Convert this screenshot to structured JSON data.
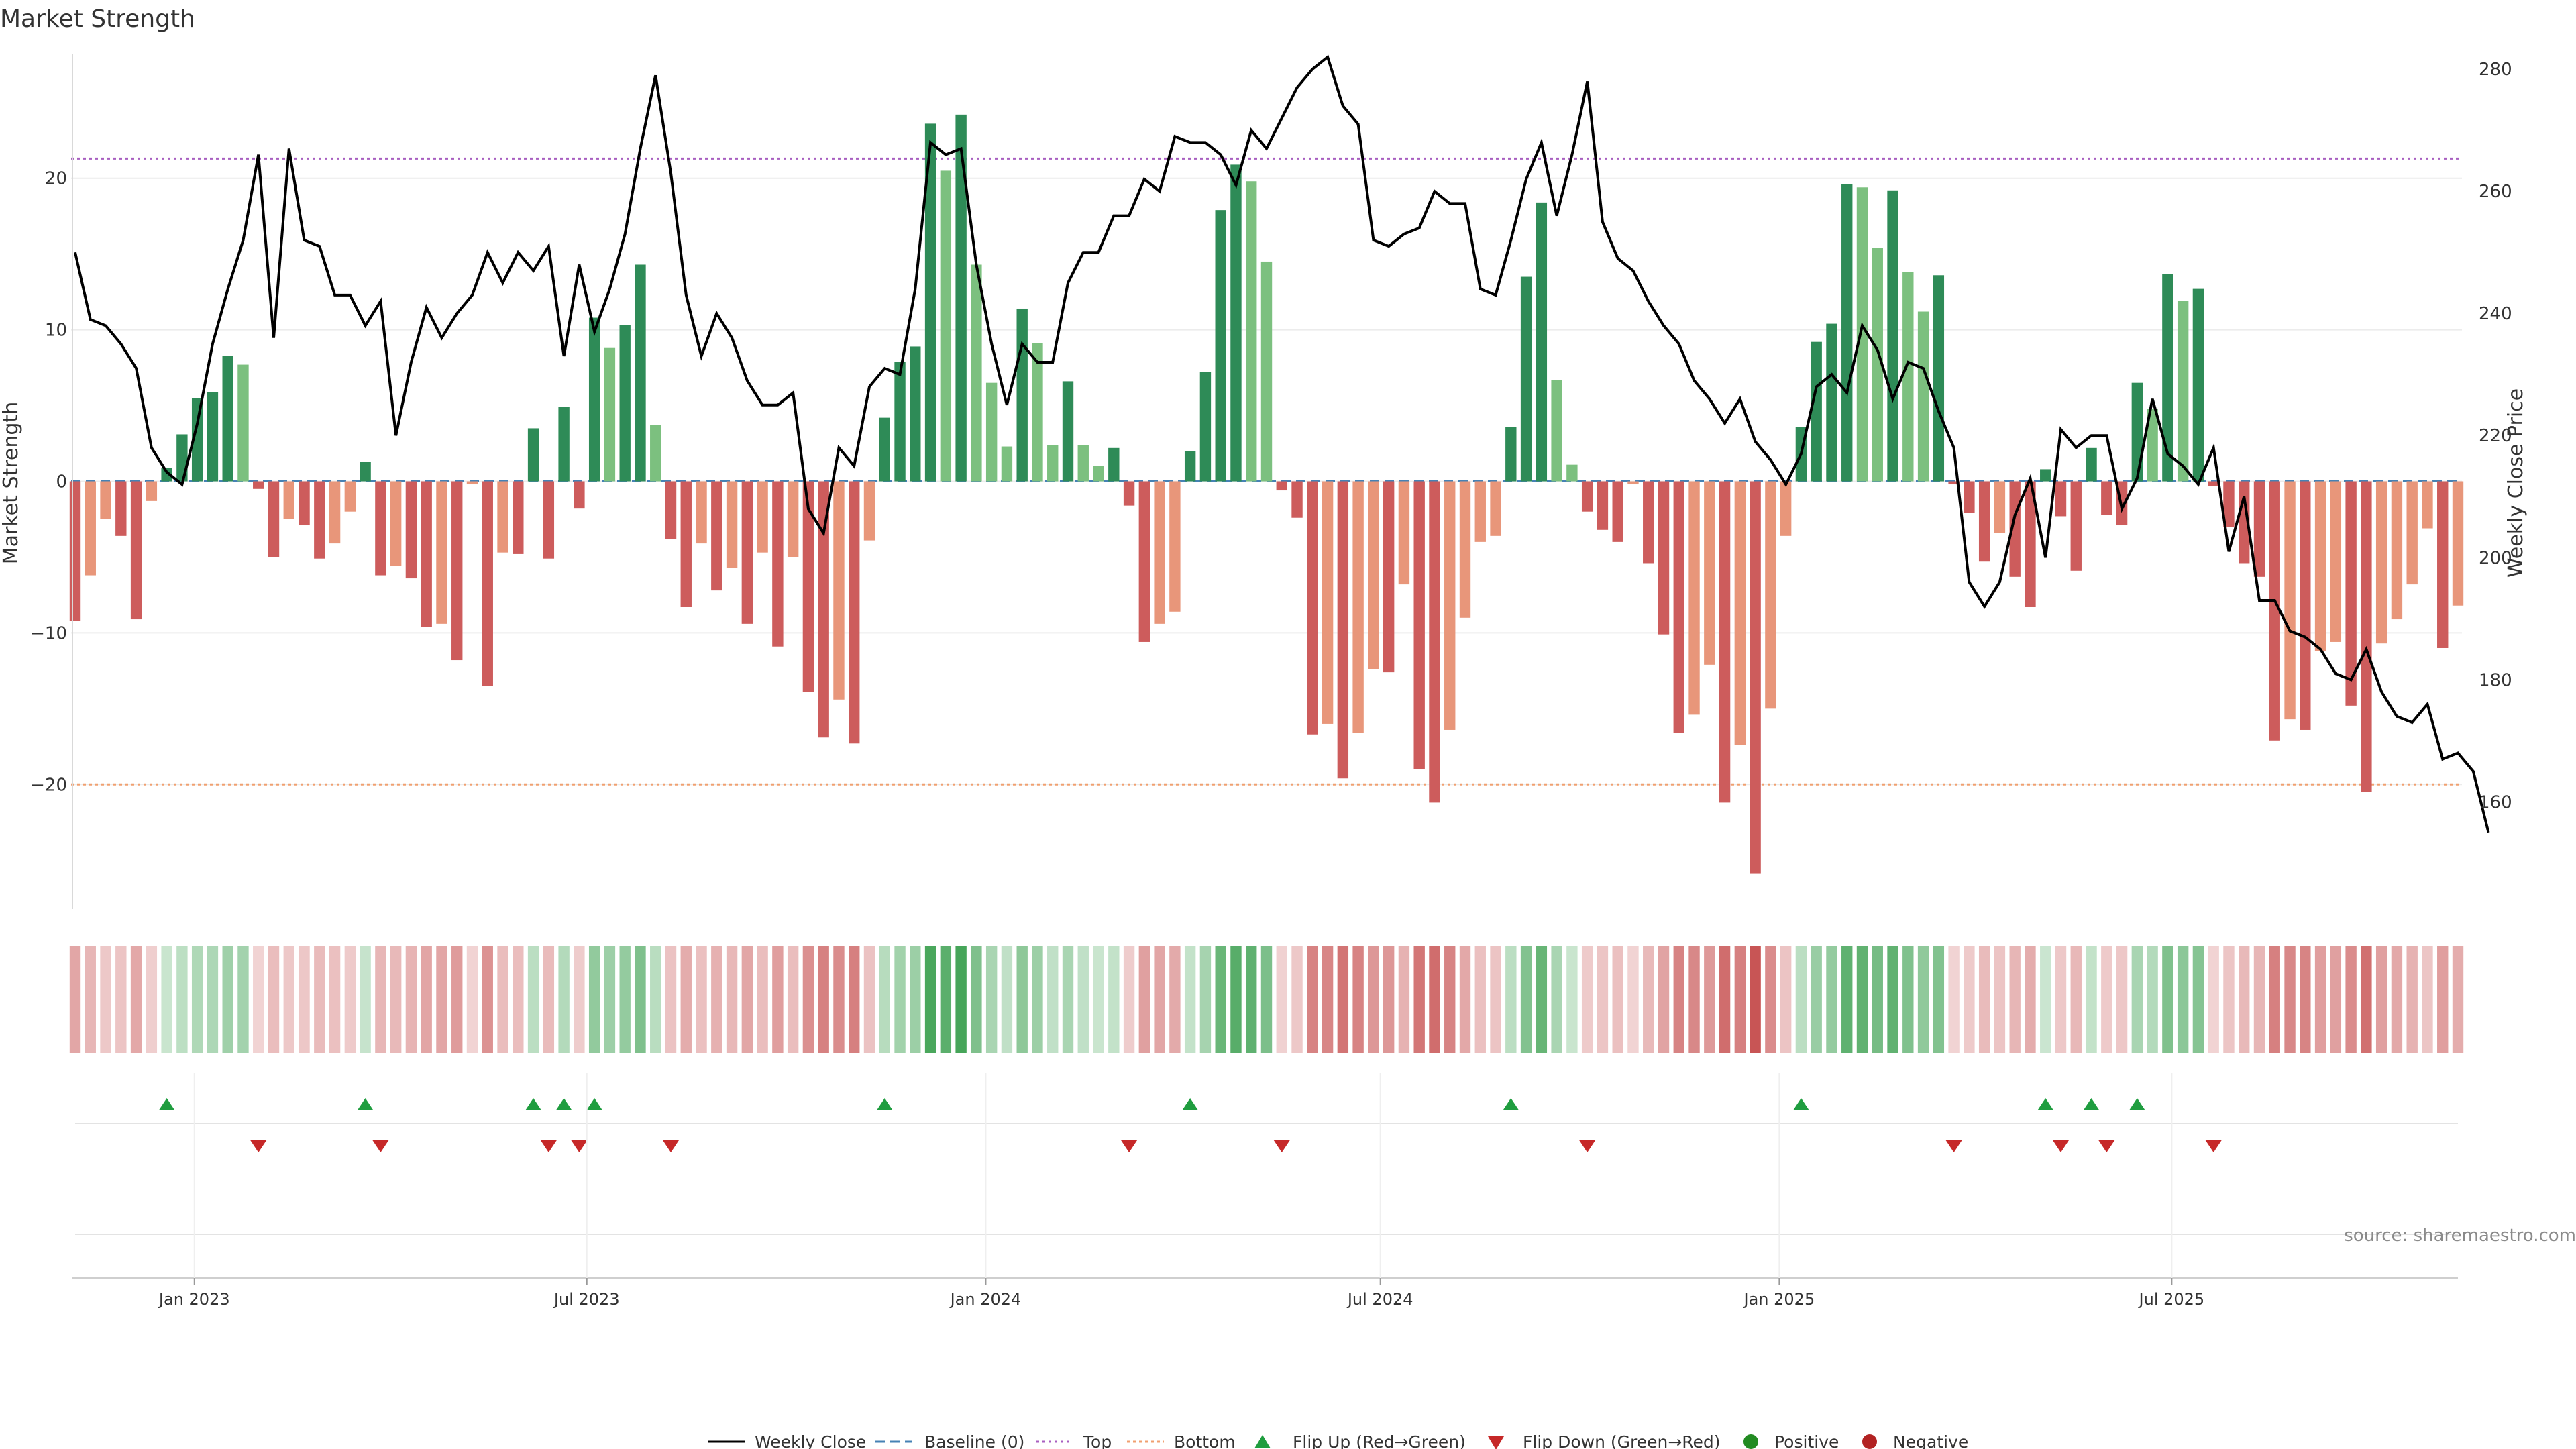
{
  "chart_data": {
    "type": "bar",
    "title": "Market Strength",
    "ylabel": "Market Strength",
    "y2label": "Weekly Close Price",
    "ylim": [
      -28,
      28
    ],
    "y2lim": [
      143,
      282
    ],
    "y_ticks": [
      20,
      10,
      0,
      -10,
      -20
    ],
    "y2_ticks": [
      280,
      260,
      240,
      220,
      200,
      180,
      160
    ],
    "top_level": 21.3,
    "bottom_level": -20,
    "x_start": "2022-11-07",
    "x_end": "2025-11-10",
    "x_ticks": [
      {
        "date": "2023-01-01",
        "label": "Jan 2023"
      },
      {
        "date": "2023-07-01",
        "label": "Jul 2023"
      },
      {
        "date": "2024-01-01",
        "label": "Jan 2024"
      },
      {
        "date": "2024-07-01",
        "label": "Jul 2024"
      },
      {
        "date": "2025-01-01",
        "label": "Jan 2025"
      },
      {
        "date": "2025-07-01",
        "label": "Jul 2025"
      }
    ],
    "strength": [
      -9.2,
      -6.2,
      -2.5,
      -3.6,
      -9.1,
      -1.3,
      0.9,
      3.1,
      5.5,
      5.9,
      8.3,
      7.7,
      -0.5,
      -5.0,
      -2.5,
      -2.9,
      -5.1,
      -4.1,
      -2.0,
      1.3,
      -6.2,
      -5.6,
      -6.4,
      -9.6,
      -9.4,
      -11.8,
      -0.2,
      -13.5,
      -4.7,
      -4.8,
      3.5,
      -5.1,
      4.9,
      -1.8,
      10.8,
      8.8,
      10.3,
      14.3,
      3.7,
      -3.8,
      -8.3,
      -4.1,
      -7.2,
      -5.7,
      -9.4,
      -4.7,
      -10.9,
      -5.0,
      -13.9,
      -16.9,
      -14.4,
      -17.3,
      -3.9,
      4.2,
      7.9,
      8.9,
      23.6,
      20.5,
      24.2,
      14.3,
      6.5,
      2.3,
      11.4,
      9.1,
      2.4,
      6.6,
      2.4,
      1.0,
      2.2,
      -1.6,
      -10.6,
      -9.4,
      -8.6,
      2.0,
      7.2,
      17.9,
      20.9,
      19.8,
      14.5,
      -0.6,
      -2.4,
      -16.7,
      -16.0,
      -19.6,
      -16.6,
      -12.4,
      -12.6,
      -6.8,
      -19.0,
      -21.2,
      -16.4,
      -9.0,
      -4.0,
      -3.6,
      3.6,
      13.5,
      18.4,
      6.7,
      1.1,
      -2.0,
      -3.2,
      -4.0,
      -0.2,
      -5.4,
      -10.1,
      -16.6,
      -15.4,
      -12.1,
      -21.2,
      -17.4,
      -25.9,
      -15.0,
      -3.6,
      3.6,
      9.2,
      10.4,
      19.6,
      19.4,
      15.4,
      19.2,
      13.8,
      11.2,
      13.6,
      -0.2,
      -2.1,
      -5.3,
      -3.4,
      -6.3,
      -8.3,
      0.8,
      -2.3,
      -5.9,
      2.2,
      -2.2,
      -2.9,
      6.5,
      4.8,
      13.7,
      11.9,
      12.7,
      -0.3,
      -3.0,
      -5.4,
      -6.3,
      -17.1,
      -15.7,
      -16.4,
      -11.2,
      -10.6,
      -14.8,
      -20.5,
      -10.7,
      -9.1,
      -6.8,
      -3.1,
      -11.0,
      -8.2
    ],
    "price": [
      250,
      239,
      238,
      235,
      231,
      218,
      214,
      212,
      222,
      235,
      244,
      252,
      266,
      236,
      267,
      252,
      251,
      243,
      243,
      238,
      242,
      220,
      232,
      241,
      236,
      240,
      243,
      250,
      245,
      250,
      247,
      251,
      233,
      248,
      237,
      244,
      253,
      267,
      279,
      263,
      243,
      233,
      240,
      236,
      229,
      225,
      225,
      227,
      208,
      204,
      218,
      215,
      228,
      231,
      230,
      244,
      268,
      266,
      267,
      248,
      235,
      225,
      235,
      232,
      232,
      245,
      250,
      250,
      256,
      256,
      262,
      260,
      269,
      268,
      268,
      266,
      261,
      270,
      267,
      272,
      277,
      280,
      282,
      274,
      271,
      252,
      251,
      253,
      254,
      260,
      258,
      258,
      244,
      243,
      252,
      262,
      268,
      256,
      266,
      278,
      255,
      249,
      247,
      242,
      238,
      235,
      229,
      226,
      222,
      226,
      219,
      216,
      212,
      217,
      228,
      230,
      227,
      238,
      234,
      226,
      232,
      231,
      224,
      218,
      196,
      192,
      196,
      207,
      213,
      200,
      221,
      218,
      220,
      220,
      208,
      213,
      226,
      217,
      215,
      212,
      218,
      201,
      210,
      193,
      193,
      188,
      187,
      185,
      181,
      180,
      185,
      178,
      174,
      173,
      176,
      167,
      168,
      165,
      155
    ]
  },
  "legend": {
    "weekly_close": "Weekly Close",
    "baseline": "Baseline (0)",
    "top": "Top",
    "bottom": "Bottom",
    "flip_up": "Flip Up (Red→Green)",
    "flip_down": "Flip Down (Green→Red)",
    "positive": "Positive",
    "negative": "Negative"
  },
  "source": "source: sharemaestro.com",
  "colors": {
    "positive_dark": "#2e8b57",
    "positive_light": "#7cc07f",
    "negative_dark": "#cd5c5c",
    "negative_light": "#e8967a",
    "price_line": "#000000",
    "baseline": "#4682b4",
    "top_line": "#a85fc0",
    "bottom_line": "#f0a070",
    "flip_up": "#1f9d3f",
    "flip_down": "#c62828",
    "positive_dot": "#228b22",
    "negative_dot": "#b22222"
  }
}
